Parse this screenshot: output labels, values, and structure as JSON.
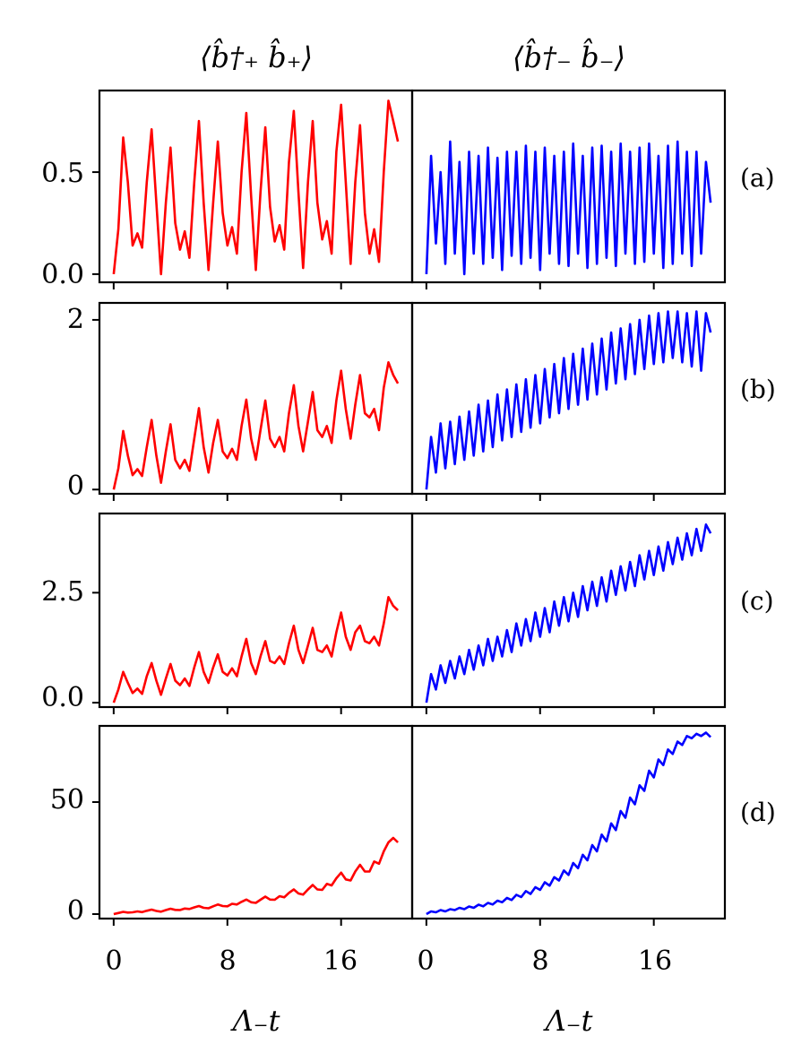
{
  "colors": {
    "left_series": "#ff0000",
    "right_series": "#0000ff",
    "frame": "#000000"
  },
  "columns": [
    {
      "title": "⟨b̂†₊ b̂₊⟩",
      "xlabel": "Λ₋t",
      "series_color": "#ff0000"
    },
    {
      "title": "⟨b̂†₋ b̂₋⟩",
      "xlabel": "Λ₋t",
      "series_color": "#0000ff"
    }
  ],
  "rows": [
    {
      "label": "(a)",
      "y_ticks": [
        0.0,
        0.5
      ],
      "y_tick_labels": [
        "0.0",
        "0.5"
      ]
    },
    {
      "label": "(b)",
      "y_ticks": [
        0,
        2
      ],
      "y_tick_labels": [
        "0",
        "2"
      ]
    },
    {
      "label": "(c)",
      "y_ticks": [
        0.0,
        2.5
      ],
      "y_tick_labels": [
        "0.0",
        "2.5"
      ]
    },
    {
      "label": "(d)",
      "y_ticks": [
        0,
        50
      ],
      "y_tick_labels": [
        "0",
        "50"
      ]
    }
  ],
  "x_ticks": [
    0,
    8,
    16
  ],
  "x_tick_labels": [
    "0",
    "8",
    "16"
  ],
  "chart_data": {
    "type": "line",
    "grid": false,
    "xlim": [
      -1,
      21
    ],
    "x_sampled_range": [
      0,
      20
    ],
    "ylims": [
      [
        -0.04,
        0.9
      ],
      [
        -0.05,
        2.2
      ],
      [
        -0.1,
        4.3
      ],
      [
        -2,
        84
      ]
    ],
    "panels": [
      {
        "row": "(a)",
        "column": 0,
        "x": [
          0,
          0.33,
          0.67,
          1.0,
          1.33,
          1.67,
          2.0,
          2.33,
          2.67,
          3.0,
          3.33,
          3.67,
          4.0,
          4.33,
          4.67,
          5.0,
          5.33,
          5.67,
          6.0,
          6.33,
          6.67,
          7.0,
          7.33,
          7.67,
          8.0,
          8.33,
          8.67,
          9.0,
          9.33,
          9.67,
          10.0,
          10.33,
          10.67,
          11.0,
          11.33,
          11.67,
          12.0,
          12.33,
          12.67,
          13.0,
          13.33,
          13.67,
          14.0,
          14.33,
          14.67,
          15.0,
          15.33,
          15.67,
          16.0,
          16.33,
          16.67,
          17.0,
          17.33,
          17.67,
          18.0,
          18.33,
          18.67,
          19.0,
          19.33,
          19.67,
          20.0
        ],
        "y": [
          0.0,
          0.22,
          0.67,
          0.45,
          0.14,
          0.2,
          0.13,
          0.45,
          0.71,
          0.35,
          0.0,
          0.35,
          0.62,
          0.25,
          0.12,
          0.21,
          0.08,
          0.45,
          0.75,
          0.35,
          0.02,
          0.35,
          0.65,
          0.3,
          0.14,
          0.23,
          0.1,
          0.5,
          0.79,
          0.38,
          0.02,
          0.4,
          0.72,
          0.33,
          0.16,
          0.24,
          0.12,
          0.55,
          0.8,
          0.4,
          0.03,
          0.45,
          0.75,
          0.35,
          0.17,
          0.26,
          0.1,
          0.6,
          0.83,
          0.45,
          0.05,
          0.45,
          0.73,
          0.3,
          0.1,
          0.22,
          0.06,
          0.5,
          0.85,
          0.75,
          0.65
        ]
      },
      {
        "row": "(a)",
        "column": 1,
        "x": [
          0,
          0.33,
          0.67,
          1.0,
          1.33,
          1.67,
          2.0,
          2.33,
          2.67,
          3.0,
          3.33,
          3.67,
          4.0,
          4.33,
          4.67,
          5.0,
          5.33,
          5.67,
          6.0,
          6.33,
          6.67,
          7.0,
          7.33,
          7.67,
          8.0,
          8.33,
          8.67,
          9.0,
          9.33,
          9.67,
          10.0,
          10.33,
          10.67,
          11.0,
          11.33,
          11.67,
          12.0,
          12.33,
          12.67,
          13.0,
          13.33,
          13.67,
          14.0,
          14.33,
          14.67,
          15.0,
          15.33,
          15.67,
          16.0,
          16.33,
          16.67,
          17.0,
          17.33,
          17.67,
          18.0,
          18.33,
          18.67,
          19.0,
          19.33,
          19.67,
          20.0
        ],
        "y": [
          0.0,
          0.58,
          0.15,
          0.5,
          0.05,
          0.65,
          0.1,
          0.55,
          0.0,
          0.6,
          0.1,
          0.58,
          0.05,
          0.62,
          0.08,
          0.57,
          0.02,
          0.6,
          0.09,
          0.6,
          0.05,
          0.63,
          0.08,
          0.6,
          0.02,
          0.62,
          0.1,
          0.58,
          0.05,
          0.6,
          0.04,
          0.64,
          0.1,
          0.58,
          0.03,
          0.62,
          0.05,
          0.63,
          0.08,
          0.6,
          0.04,
          0.64,
          0.1,
          0.6,
          0.05,
          0.62,
          0.06,
          0.64,
          0.1,
          0.58,
          0.03,
          0.63,
          0.05,
          0.65,
          0.1,
          0.6,
          0.04,
          0.6,
          0.1,
          0.55,
          0.35
        ]
      },
      {
        "row": "(b)",
        "column": 0,
        "x": [
          0,
          0.33,
          0.67,
          1.0,
          1.33,
          1.67,
          2.0,
          2.33,
          2.67,
          3.0,
          3.33,
          3.67,
          4.0,
          4.33,
          4.67,
          5.0,
          5.33,
          5.67,
          6.0,
          6.33,
          6.67,
          7.0,
          7.33,
          7.67,
          8.0,
          8.33,
          8.67,
          9.0,
          9.33,
          9.67,
          10.0,
          10.33,
          10.67,
          11.0,
          11.33,
          11.67,
          12.0,
          12.33,
          12.67,
          13.0,
          13.33,
          13.67,
          14.0,
          14.33,
          14.67,
          15.0,
          15.33,
          15.67,
          16.0,
          16.33,
          16.67,
          17.0,
          17.33,
          17.67,
          18.0,
          18.33,
          18.67,
          19.0,
          19.33,
          19.67,
          20.0
        ],
        "y": [
          0.0,
          0.25,
          0.69,
          0.4,
          0.17,
          0.24,
          0.16,
          0.5,
          0.82,
          0.4,
          0.08,
          0.45,
          0.77,
          0.35,
          0.25,
          0.35,
          0.22,
          0.6,
          0.96,
          0.5,
          0.2,
          0.55,
          0.82,
          0.45,
          0.37,
          0.48,
          0.35,
          0.75,
          1.06,
          0.6,
          0.35,
          0.7,
          1.05,
          0.6,
          0.5,
          0.62,
          0.45,
          0.9,
          1.23,
          0.75,
          0.45,
          0.8,
          1.15,
          0.7,
          0.62,
          0.75,
          0.55,
          1.05,
          1.4,
          0.95,
          0.6,
          1.0,
          1.35,
          0.9,
          0.85,
          0.95,
          0.7,
          1.2,
          1.5,
          1.35,
          1.25
        ]
      },
      {
        "row": "(b)",
        "column": 1,
        "x": [
          0,
          0.33,
          0.67,
          1.0,
          1.33,
          1.67,
          2.0,
          2.33,
          2.67,
          3.0,
          3.33,
          3.67,
          4.0,
          4.33,
          4.67,
          5.0,
          5.33,
          5.67,
          6.0,
          6.33,
          6.67,
          7.0,
          7.33,
          7.67,
          8.0,
          8.33,
          8.67,
          9.0,
          9.33,
          9.67,
          10.0,
          10.33,
          10.67,
          11.0,
          11.33,
          11.67,
          12.0,
          12.33,
          12.67,
          13.0,
          13.33,
          13.67,
          14.0,
          14.33,
          14.67,
          15.0,
          15.33,
          15.67,
          16.0,
          16.33,
          16.67,
          17.0,
          17.33,
          17.67,
          18.0,
          18.33,
          18.67,
          19.0,
          19.33,
          19.67,
          20.0
        ],
        "y": [
          0.0,
          0.62,
          0.2,
          0.78,
          0.25,
          0.8,
          0.3,
          0.86,
          0.35,
          0.92,
          0.4,
          1.0,
          0.45,
          1.05,
          0.5,
          1.12,
          0.58,
          1.18,
          0.62,
          1.24,
          0.68,
          1.3,
          0.73,
          1.35,
          0.78,
          1.42,
          0.85,
          1.48,
          0.9,
          1.55,
          0.95,
          1.6,
          1.0,
          1.66,
          1.06,
          1.72,
          1.12,
          1.78,
          1.18,
          1.85,
          1.25,
          1.9,
          1.3,
          1.95,
          1.36,
          2.0,
          1.42,
          2.05,
          1.48,
          2.08,
          1.5,
          2.1,
          1.55,
          2.1,
          1.5,
          2.08,
          1.45,
          2.1,
          1.4,
          2.08,
          1.85
        ]
      },
      {
        "row": "(c)",
        "column": 0,
        "x": [
          0,
          0.33,
          0.67,
          1.0,
          1.33,
          1.67,
          2.0,
          2.33,
          2.67,
          3.0,
          3.33,
          3.67,
          4.0,
          4.33,
          4.67,
          5.0,
          5.33,
          5.67,
          6.0,
          6.33,
          6.67,
          7.0,
          7.33,
          7.67,
          8.0,
          8.33,
          8.67,
          9.0,
          9.33,
          9.67,
          10.0,
          10.33,
          10.67,
          11.0,
          11.33,
          11.67,
          12.0,
          12.33,
          12.67,
          13.0,
          13.33,
          13.67,
          14.0,
          14.33,
          14.67,
          15.0,
          15.33,
          15.67,
          16.0,
          16.33,
          16.67,
          17.0,
          17.33,
          17.67,
          18.0,
          18.33,
          18.67,
          19.0,
          19.33,
          19.67,
          20.0
        ],
        "y": [
          0.0,
          0.3,
          0.7,
          0.45,
          0.22,
          0.32,
          0.2,
          0.6,
          0.9,
          0.5,
          0.18,
          0.55,
          0.88,
          0.5,
          0.4,
          0.55,
          0.38,
          0.8,
          1.15,
          0.7,
          0.45,
          0.8,
          1.1,
          0.7,
          0.62,
          0.78,
          0.6,
          1.05,
          1.45,
          0.9,
          0.65,
          1.05,
          1.4,
          0.95,
          0.9,
          1.05,
          0.88,
          1.35,
          1.75,
          1.2,
          0.9,
          1.3,
          1.7,
          1.2,
          1.15,
          1.3,
          1.05,
          1.6,
          2.05,
          1.5,
          1.2,
          1.6,
          1.75,
          1.4,
          1.35,
          1.5,
          1.3,
          1.8,
          2.4,
          2.2,
          2.1
        ]
      },
      {
        "row": "(c)",
        "column": 1,
        "x": [
          0,
          0.33,
          0.67,
          1.0,
          1.33,
          1.67,
          2.0,
          2.33,
          2.67,
          3.0,
          3.33,
          3.67,
          4.0,
          4.33,
          4.67,
          5.0,
          5.33,
          5.67,
          6.0,
          6.33,
          6.67,
          7.0,
          7.33,
          7.67,
          8.0,
          8.33,
          8.67,
          9.0,
          9.33,
          9.67,
          10.0,
          10.33,
          10.67,
          11.0,
          11.33,
          11.67,
          12.0,
          12.33,
          12.67,
          13.0,
          13.33,
          13.67,
          14.0,
          14.33,
          14.67,
          15.0,
          15.33,
          15.67,
          16.0,
          16.33,
          16.67,
          17.0,
          17.33,
          17.67,
          18.0,
          18.33,
          18.67,
          19.0,
          19.33,
          19.67,
          20.0
        ],
        "y": [
          0.0,
          0.65,
          0.3,
          0.85,
          0.45,
          0.95,
          0.55,
          1.05,
          0.65,
          1.2,
          0.75,
          1.3,
          0.85,
          1.45,
          0.95,
          1.5,
          1.05,
          1.65,
          1.15,
          1.8,
          1.3,
          1.9,
          1.4,
          2.05,
          1.5,
          2.15,
          1.6,
          2.3,
          1.75,
          2.4,
          1.85,
          2.5,
          1.95,
          2.65,
          2.1,
          2.75,
          2.2,
          2.85,
          2.3,
          3.0,
          2.45,
          3.1,
          2.55,
          3.2,
          2.65,
          3.35,
          2.8,
          3.45,
          2.9,
          3.55,
          3.0,
          3.65,
          3.15,
          3.75,
          3.25,
          3.85,
          3.35,
          3.95,
          3.45,
          4.05,
          3.85
        ]
      },
      {
        "row": "(d)",
        "column": 0,
        "x": [
          0,
          0.33,
          0.67,
          1.0,
          1.33,
          1.67,
          2.0,
          2.33,
          2.67,
          3.0,
          3.33,
          3.67,
          4.0,
          4.33,
          4.67,
          5.0,
          5.33,
          5.67,
          6.0,
          6.33,
          6.67,
          7.0,
          7.33,
          7.67,
          8.0,
          8.33,
          8.67,
          9.0,
          9.33,
          9.67,
          10.0,
          10.33,
          10.67,
          11.0,
          11.33,
          11.67,
          12.0,
          12.33,
          12.67,
          13.0,
          13.33,
          13.67,
          14.0,
          14.33,
          14.67,
          15.0,
          15.33,
          15.67,
          16.0,
          16.33,
          16.67,
          17.0,
          17.33,
          17.67,
          18.0,
          18.33,
          18.67,
          19.0,
          19.33,
          19.67,
          20.0
        ],
        "y": [
          0.0,
          0.5,
          1.0,
          0.7,
          0.8,
          1.2,
          0.9,
          1.5,
          2.0,
          1.4,
          1.1,
          1.8,
          2.4,
          1.9,
          1.8,
          2.5,
          2.3,
          3.0,
          3.6,
          2.8,
          2.6,
          3.5,
          4.3,
          3.6,
          3.5,
          4.6,
          4.3,
          5.5,
          6.5,
          5.3,
          5.0,
          6.4,
          7.8,
          6.5,
          6.4,
          8.0,
          7.5,
          9.5,
          11.0,
          9.2,
          8.7,
          11.0,
          13.0,
          11.0,
          10.8,
          13.5,
          12.8,
          16.0,
          18.5,
          15.5,
          15.0,
          19.0,
          22.0,
          19.0,
          19.0,
          23.5,
          22.5,
          28.0,
          32.0,
          34.0,
          32.0
        ]
      },
      {
        "row": "(d)",
        "column": 1,
        "x": [
          0,
          0.33,
          0.67,
          1.0,
          1.33,
          1.67,
          2.0,
          2.33,
          2.67,
          3.0,
          3.33,
          3.67,
          4.0,
          4.33,
          4.67,
          5.0,
          5.33,
          5.67,
          6.0,
          6.33,
          6.67,
          7.0,
          7.33,
          7.67,
          8.0,
          8.33,
          8.67,
          9.0,
          9.33,
          9.67,
          10.0,
          10.33,
          10.67,
          11.0,
          11.33,
          11.67,
          12.0,
          12.33,
          12.67,
          13.0,
          13.33,
          13.67,
          14.0,
          14.33,
          14.67,
          15.0,
          15.33,
          15.67,
          16.0,
          16.33,
          16.67,
          17.0,
          17.33,
          17.67,
          18.0,
          18.33,
          18.67,
          19.0,
          19.33,
          19.67,
          20.0
        ],
        "y": [
          0.0,
          1.2,
          0.8,
          1.8,
          1.2,
          2.2,
          1.8,
          2.8,
          2.2,
          3.4,
          2.8,
          4.2,
          3.5,
          5.0,
          4.3,
          6.0,
          5.3,
          7.2,
          6.3,
          8.6,
          7.6,
          10.3,
          9.0,
          12.0,
          10.8,
          14.2,
          12.7,
          16.5,
          15.0,
          19.5,
          17.5,
          22.8,
          20.5,
          26.5,
          24.0,
          30.8,
          28.0,
          35.5,
          32.5,
          40.5,
          37.5,
          46.0,
          43.0,
          52.0,
          49.0,
          57.5,
          55.0,
          64.0,
          61.0,
          69.0,
          66.5,
          73.5,
          71.5,
          77.0,
          75.5,
          79.5,
          78.5,
          80.5,
          79.5,
          81.0,
          79.0
        ]
      }
    ]
  }
}
